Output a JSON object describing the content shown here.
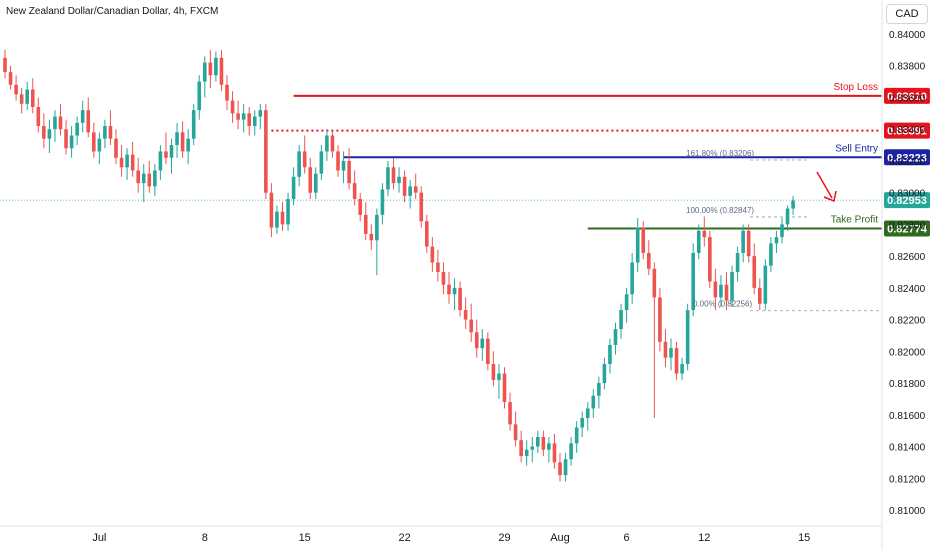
{
  "header": {
    "title": "New Zealand Dollar/Canadian Dollar, 4h, FXCM",
    "currency_button": "CAD"
  },
  "colors": {
    "up": "#26a69a",
    "down": "#ef5350",
    "stop_loss": "#e5131d",
    "sell_entry": "#1a23a3",
    "take_profit": "#2e6b1d",
    "current": "#26a69a",
    "dotted": "#e5131d",
    "grid_text": "#131722"
  },
  "chart_data": {
    "type": "candlestick",
    "ylim": [
      0.81,
      0.842
    ],
    "y_ticks": [
      "0.84000",
      "0.83800",
      "0.83600",
      "0.83400",
      "0.83200",
      "0.83000",
      "0.82800",
      "0.82600",
      "0.82400",
      "0.82200",
      "0.82000",
      "0.81800",
      "0.81600",
      "0.81400",
      "0.81200",
      "0.81000"
    ],
    "y_tick_values": [
      0.84,
      0.838,
      0.836,
      0.834,
      0.832,
      0.83,
      0.828,
      0.826,
      0.824,
      0.822,
      0.82,
      0.818,
      0.816,
      0.814,
      0.812,
      0.81
    ],
    "x_ticks": [
      "Jul",
      "8",
      "15",
      "22",
      "29",
      "Aug",
      "6",
      "12",
      "15"
    ],
    "x_tick_bars": [
      17,
      36,
      54,
      72,
      90,
      100,
      112,
      126,
      144
    ],
    "levels": [
      {
        "label": "Stop Loss",
        "value": 0.8361,
        "tag": "0.83610",
        "style": "solid",
        "color_key": "stop_loss",
        "start_bar": 52
      },
      {
        "label": "",
        "value": 0.83391,
        "tag": "0.83391",
        "style": "dotted",
        "color_key": "dotted",
        "start_bar": 48
      },
      {
        "label": "Sell Entry",
        "value": 0.83223,
        "tag": "0.83223",
        "style": "solid",
        "color_key": "sell_entry",
        "start_bar": 61
      },
      {
        "label": "Take Profit",
        "value": 0.82774,
        "tag": "0.82774",
        "style": "solid",
        "color_key": "take_profit",
        "start_bar": 105
      }
    ],
    "current_price": {
      "value": 0.82953,
      "tag": "0.82953"
    },
    "fib_labels": [
      {
        "text": "161.80% (0.83206)",
        "value": 0.83206
      },
      {
        "text": "100.00% (0.82847)",
        "value": 0.82847
      },
      {
        "text": "0.00% (0.82256)",
        "value": 0.82256
      }
    ],
    "candles": [
      [
        0.8385,
        0.839,
        0.8372,
        0.8376
      ],
      [
        0.8376,
        0.838,
        0.8365,
        0.8368
      ],
      [
        0.8368,
        0.8374,
        0.8358,
        0.8362
      ],
      [
        0.8362,
        0.8366,
        0.835,
        0.8356
      ],
      [
        0.8356,
        0.837,
        0.8352,
        0.8365
      ],
      [
        0.8365,
        0.8372,
        0.835,
        0.8354
      ],
      [
        0.8354,
        0.836,
        0.8338,
        0.8342
      ],
      [
        0.8342,
        0.835,
        0.8328,
        0.8334
      ],
      [
        0.8334,
        0.8346,
        0.8325,
        0.834
      ],
      [
        0.834,
        0.8352,
        0.8332,
        0.8348
      ],
      [
        0.8348,
        0.8356,
        0.8336,
        0.834
      ],
      [
        0.834,
        0.8346,
        0.8324,
        0.8328
      ],
      [
        0.8328,
        0.8342,
        0.8322,
        0.8336
      ],
      [
        0.8336,
        0.8348,
        0.833,
        0.8344
      ],
      [
        0.8344,
        0.8358,
        0.8338,
        0.8352
      ],
      [
        0.8352,
        0.836,
        0.8335,
        0.8338
      ],
      [
        0.8338,
        0.8344,
        0.8322,
        0.8326
      ],
      [
        0.8326,
        0.8338,
        0.8318,
        0.8334
      ],
      [
        0.8334,
        0.8346,
        0.8328,
        0.8342
      ],
      [
        0.8342,
        0.8352,
        0.833,
        0.8334
      ],
      [
        0.8334,
        0.834,
        0.8318,
        0.8322
      ],
      [
        0.8322,
        0.833,
        0.831,
        0.8316
      ],
      [
        0.8316,
        0.8328,
        0.8308,
        0.8324
      ],
      [
        0.8324,
        0.8332,
        0.831,
        0.8314
      ],
      [
        0.8314,
        0.8322,
        0.83,
        0.8306
      ],
      [
        0.8306,
        0.8318,
        0.8294,
        0.8312
      ],
      [
        0.8312,
        0.832,
        0.83,
        0.8304
      ],
      [
        0.8304,
        0.8318,
        0.8298,
        0.8314
      ],
      [
        0.8314,
        0.833,
        0.8308,
        0.8326
      ],
      [
        0.8326,
        0.8338,
        0.8318,
        0.8322
      ],
      [
        0.8322,
        0.8334,
        0.8312,
        0.833
      ],
      [
        0.833,
        0.8344,
        0.8322,
        0.8338
      ],
      [
        0.8338,
        0.8345,
        0.8322,
        0.8326
      ],
      [
        0.8326,
        0.834,
        0.8318,
        0.8334
      ],
      [
        0.8334,
        0.8356,
        0.833,
        0.8352
      ],
      [
        0.8352,
        0.8374,
        0.8346,
        0.837
      ],
      [
        0.837,
        0.8386,
        0.836,
        0.8382
      ],
      [
        0.8382,
        0.839,
        0.8366,
        0.8374
      ],
      [
        0.8374,
        0.8389,
        0.837,
        0.8385
      ],
      [
        0.8385,
        0.839,
        0.8364,
        0.8368
      ],
      [
        0.8368,
        0.8374,
        0.8352,
        0.8358
      ],
      [
        0.8358,
        0.8364,
        0.8344,
        0.835
      ],
      [
        0.835,
        0.8358,
        0.834,
        0.8346
      ],
      [
        0.8346,
        0.8356,
        0.8338,
        0.835
      ],
      [
        0.835,
        0.8354,
        0.8336,
        0.8342
      ],
      [
        0.8342,
        0.8352,
        0.8336,
        0.8348
      ],
      [
        0.8348,
        0.8356,
        0.834,
        0.8352
      ],
      [
        0.8352,
        0.8356,
        0.8296,
        0.83
      ],
      [
        0.83,
        0.8306,
        0.8272,
        0.8278
      ],
      [
        0.8278,
        0.8292,
        0.8274,
        0.8288
      ],
      [
        0.8288,
        0.8294,
        0.8276,
        0.828
      ],
      [
        0.828,
        0.83,
        0.8276,
        0.8296
      ],
      [
        0.8296,
        0.8316,
        0.8292,
        0.831
      ],
      [
        0.831,
        0.833,
        0.8304,
        0.8326
      ],
      [
        0.8326,
        0.8336,
        0.8312,
        0.8316
      ],
      [
        0.8316,
        0.8322,
        0.8296,
        0.83
      ],
      [
        0.83,
        0.8316,
        0.8296,
        0.8312
      ],
      [
        0.8312,
        0.833,
        0.8308,
        0.8326
      ],
      [
        0.8326,
        0.834,
        0.832,
        0.8336
      ],
      [
        0.8336,
        0.8339,
        0.8322,
        0.8326
      ],
      [
        0.8326,
        0.833,
        0.831,
        0.8314
      ],
      [
        0.8314,
        0.8326,
        0.8306,
        0.832
      ],
      [
        0.832,
        0.8328,
        0.8302,
        0.8306
      ],
      [
        0.8306,
        0.8314,
        0.8292,
        0.8296
      ],
      [
        0.8296,
        0.83,
        0.8282,
        0.8286
      ],
      [
        0.8286,
        0.8294,
        0.827,
        0.8274
      ],
      [
        0.8274,
        0.828,
        0.8264,
        0.827
      ],
      [
        0.827,
        0.829,
        0.8248,
        0.8286
      ],
      [
        0.8286,
        0.8306,
        0.828,
        0.8302
      ],
      [
        0.8302,
        0.832,
        0.8298,
        0.8316
      ],
      [
        0.8316,
        0.8322,
        0.8302,
        0.8306
      ],
      [
        0.8306,
        0.8316,
        0.83,
        0.831
      ],
      [
        0.831,
        0.8314,
        0.8294,
        0.8298
      ],
      [
        0.8298,
        0.8308,
        0.829,
        0.8304
      ],
      [
        0.8304,
        0.8312,
        0.8296,
        0.83
      ],
      [
        0.83,
        0.8304,
        0.8278,
        0.8282
      ],
      [
        0.8282,
        0.8286,
        0.8262,
        0.8266
      ],
      [
        0.8266,
        0.8272,
        0.825,
        0.8256
      ],
      [
        0.8256,
        0.8264,
        0.8244,
        0.825
      ],
      [
        0.825,
        0.8256,
        0.8236,
        0.8242
      ],
      [
        0.8242,
        0.825,
        0.823,
        0.8236
      ],
      [
        0.8236,
        0.8246,
        0.8226,
        0.824
      ],
      [
        0.824,
        0.8244,
        0.8222,
        0.8226
      ],
      [
        0.8226,
        0.8234,
        0.8214,
        0.822
      ],
      [
        0.822,
        0.823,
        0.8206,
        0.8212
      ],
      [
        0.8212,
        0.822,
        0.8196,
        0.8202
      ],
      [
        0.8202,
        0.8214,
        0.8194,
        0.8208
      ],
      [
        0.8208,
        0.8212,
        0.8188,
        0.8192
      ],
      [
        0.8192,
        0.82,
        0.8178,
        0.8182
      ],
      [
        0.8182,
        0.8192,
        0.817,
        0.8186
      ],
      [
        0.8186,
        0.819,
        0.8164,
        0.8168
      ],
      [
        0.8168,
        0.8174,
        0.815,
        0.8154
      ],
      [
        0.8154,
        0.8162,
        0.814,
        0.8144
      ],
      [
        0.8144,
        0.815,
        0.813,
        0.8134
      ],
      [
        0.8134,
        0.8144,
        0.8128,
        0.8138
      ],
      [
        0.8138,
        0.8146,
        0.813,
        0.814
      ],
      [
        0.814,
        0.815,
        0.8136,
        0.8146
      ],
      [
        0.8146,
        0.815,
        0.8134,
        0.8138
      ],
      [
        0.8138,
        0.8146,
        0.813,
        0.8142
      ],
      [
        0.8142,
        0.8148,
        0.8126,
        0.813
      ],
      [
        0.813,
        0.8136,
        0.8118,
        0.8122
      ],
      [
        0.8122,
        0.8136,
        0.8118,
        0.8132
      ],
      [
        0.8132,
        0.8146,
        0.8128,
        0.8142
      ],
      [
        0.8142,
        0.8156,
        0.8136,
        0.8152
      ],
      [
        0.8152,
        0.8162,
        0.8146,
        0.8158
      ],
      [
        0.8158,
        0.8168,
        0.815,
        0.8164
      ],
      [
        0.8164,
        0.8176,
        0.8158,
        0.8172
      ],
      [
        0.8172,
        0.8184,
        0.8164,
        0.818
      ],
      [
        0.818,
        0.8196,
        0.8176,
        0.8192
      ],
      [
        0.8192,
        0.8208,
        0.8186,
        0.8204
      ],
      [
        0.8204,
        0.8218,
        0.8198,
        0.8214
      ],
      [
        0.8214,
        0.823,
        0.8208,
        0.8226
      ],
      [
        0.8226,
        0.824,
        0.8218,
        0.8236
      ],
      [
        0.8236,
        0.8262,
        0.823,
        0.8256
      ],
      [
        0.8256,
        0.8284,
        0.825,
        0.8278
      ],
      [
        0.8278,
        0.8282,
        0.8258,
        0.8262
      ],
      [
        0.8262,
        0.827,
        0.8248,
        0.8252
      ],
      [
        0.8252,
        0.8256,
        0.8158,
        0.8234
      ],
      [
        0.8234,
        0.824,
        0.82,
        0.8206
      ],
      [
        0.8206,
        0.8214,
        0.819,
        0.8196
      ],
      [
        0.8196,
        0.8208,
        0.8188,
        0.8202
      ],
      [
        0.8202,
        0.8206,
        0.8182,
        0.8186
      ],
      [
        0.8186,
        0.8196,
        0.8182,
        0.8192
      ],
      [
        0.8192,
        0.823,
        0.8188,
        0.8226
      ],
      [
        0.8226,
        0.8268,
        0.8222,
        0.8262
      ],
      [
        0.8262,
        0.828,
        0.8258,
        0.8276
      ],
      [
        0.8276,
        0.8285,
        0.8266,
        0.8272
      ],
      [
        0.8272,
        0.8276,
        0.824,
        0.8244
      ],
      [
        0.8244,
        0.8252,
        0.8226,
        0.8234
      ],
      [
        0.8234,
        0.8248,
        0.8228,
        0.8242
      ],
      [
        0.8242,
        0.825,
        0.8226,
        0.8232
      ],
      [
        0.8232,
        0.8254,
        0.8228,
        0.825
      ],
      [
        0.825,
        0.8266,
        0.8244,
        0.8262
      ],
      [
        0.8262,
        0.828,
        0.8256,
        0.8276
      ],
      [
        0.8276,
        0.828,
        0.8256,
        0.826
      ],
      [
        0.826,
        0.8268,
        0.8236,
        0.824
      ],
      [
        0.824,
        0.8246,
        0.8226,
        0.823
      ],
      [
        0.823,
        0.8258,
        0.8226,
        0.8254
      ],
      [
        0.8254,
        0.8272,
        0.825,
        0.8268
      ],
      [
        0.8268,
        0.8276,
        0.8262,
        0.8272
      ],
      [
        0.8272,
        0.8284,
        0.8268,
        0.828
      ],
      [
        0.828,
        0.8292,
        0.8276,
        0.829
      ],
      [
        0.829,
        0.8298,
        0.8286,
        0.8295
      ]
    ]
  }
}
